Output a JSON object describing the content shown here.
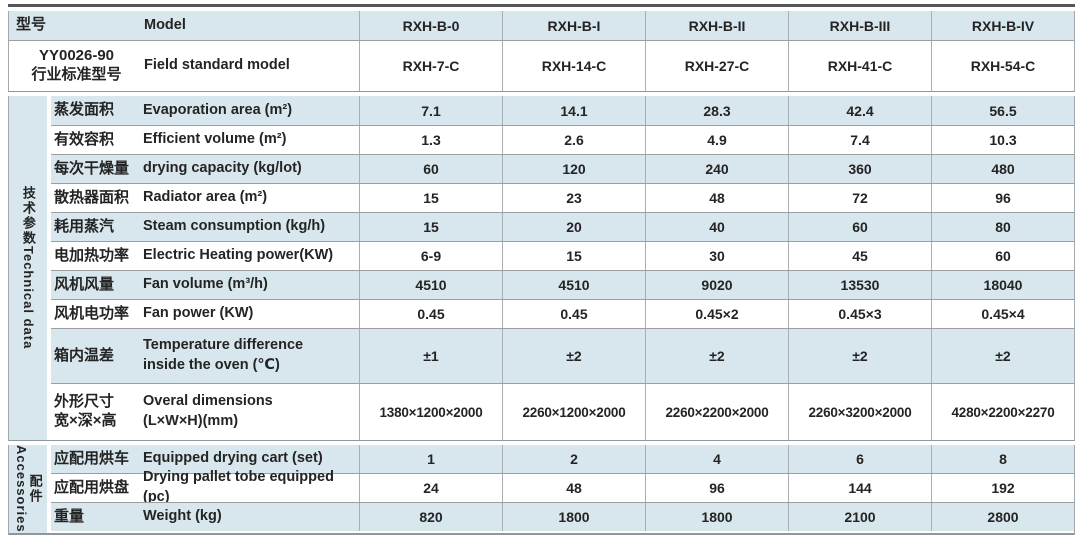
{
  "header": {
    "model_cn": "型号",
    "model_en": "Model",
    "models": [
      "RXH-B-0",
      "RXH-B-I",
      "RXH-B-II",
      "RXH-B-III",
      "RXH-B-IV"
    ],
    "standard_cn_line1": "YY0026-90",
    "standard_cn_line2": "行业标准型号",
    "standard_en": "Field standard model",
    "standard_models": [
      "RXH-7-C",
      "RXH-14-C",
      "RXH-27-C",
      "RXH-41-C",
      "RXH-54-C"
    ]
  },
  "sections": {
    "tech": {
      "cn": "技术参数",
      "en": "Technical data"
    },
    "acc": {
      "cn": "配件",
      "en": "Accessories"
    }
  },
  "tech_rows": [
    {
      "cn": "蒸发面积",
      "en": "Evaporation area (m²)",
      "values": [
        "7.1",
        "14.1",
        "28.3",
        "42.4",
        "56.5"
      ]
    },
    {
      "cn": "有效容积",
      "en": "Efficient volume (m²)",
      "values": [
        "1.3",
        "2.6",
        "4.9",
        "7.4",
        "10.3"
      ]
    },
    {
      "cn": "每次干燥量",
      "en": "drying capacity (kg/lot)",
      "values": [
        "60",
        "120",
        "240",
        "360",
        "480"
      ]
    },
    {
      "cn": "散热器面积",
      "en": "Radiator area (m²)",
      "values": [
        "15",
        "23",
        "48",
        "72",
        "96"
      ]
    },
    {
      "cn": "耗用蒸汽",
      "en": "Steam consumption (kg/h)",
      "values": [
        "15",
        "20",
        "40",
        "60",
        "80"
      ]
    },
    {
      "cn": "电加热功率",
      "en": "Electric Heating power(KW)",
      "values": [
        "6-9",
        "15",
        "30",
        "45",
        "60"
      ]
    },
    {
      "cn": "风机风量",
      "en": "Fan volume (m³/h)",
      "values": [
        "4510",
        "4510",
        "9020",
        "13530",
        "18040"
      ]
    },
    {
      "cn": "风机电功率",
      "en": "Fan power (KW)",
      "values": [
        "0.45",
        "0.45",
        "0.45×2",
        "0.45×3",
        "0.45×4"
      ]
    },
    {
      "cn": "箱内温差",
      "en_line1": "Temperature difference",
      "en_line2": "inside the oven (℃)",
      "values": [
        "±1",
        "±2",
        "±2",
        "±2",
        "±2"
      ]
    },
    {
      "cn_line1": "外形尺寸",
      "cn_line2": "宽×深×高",
      "en_line1": "Overal dimensions",
      "en_line2": "(L×W×H)(mm)",
      "values": [
        "1380×1200×2000",
        "2260×1200×2000",
        "2260×2200×2000",
        "2260×3200×2000",
        "4280×2200×2270"
      ]
    }
  ],
  "acc_rows": [
    {
      "cn": "应配用烘车",
      "en": "Equipped drying cart (set)",
      "values": [
        "1",
        "2",
        "4",
        "6",
        "8"
      ]
    },
    {
      "cn": "应配用烘盘",
      "en": "Drying pallet tobe equipped (pc)",
      "values": [
        "24",
        "48",
        "96",
        "144",
        "192"
      ]
    },
    {
      "cn": "重量",
      "en": "Weight (kg)",
      "values": [
        "820",
        "1800",
        "1800",
        "2100",
        "2800"
      ]
    }
  ],
  "colors": {
    "row_blue": "#d8e7ed",
    "row_white": "#ffffff",
    "grid_line": "#9b9fa1",
    "top_bar": "#54585a",
    "text": "#242424"
  }
}
